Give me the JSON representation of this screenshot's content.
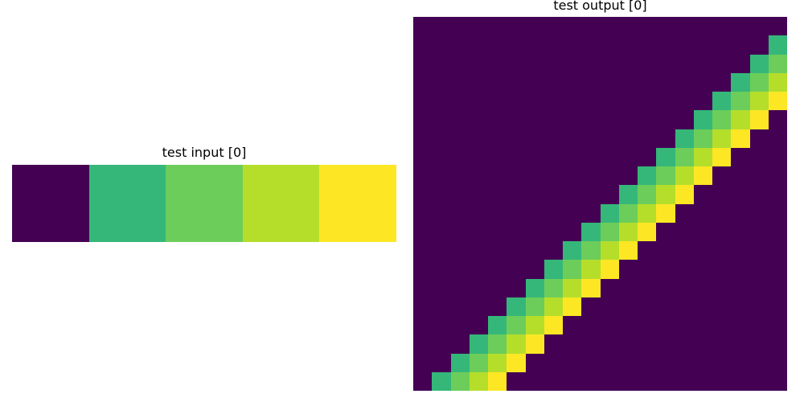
{
  "panels": {
    "input": {
      "title": "test input [0]",
      "grid": [
        [
          0,
          1,
          2,
          3,
          4
        ]
      ]
    },
    "output": {
      "title": "test output [0]",
      "grid": [
        [
          0,
          0,
          0,
          0,
          0,
          0,
          0,
          0,
          0,
          0,
          0,
          0,
          0,
          0,
          0,
          0,
          0,
          0,
          0,
          0
        ],
        [
          0,
          0,
          0,
          0,
          0,
          0,
          0,
          0,
          0,
          0,
          0,
          0,
          0,
          0,
          0,
          0,
          0,
          0,
          0,
          1
        ],
        [
          0,
          0,
          0,
          0,
          0,
          0,
          0,
          0,
          0,
          0,
          0,
          0,
          0,
          0,
          0,
          0,
          0,
          0,
          1,
          2
        ],
        [
          0,
          0,
          0,
          0,
          0,
          0,
          0,
          0,
          0,
          0,
          0,
          0,
          0,
          0,
          0,
          0,
          0,
          1,
          2,
          3
        ],
        [
          0,
          0,
          0,
          0,
          0,
          0,
          0,
          0,
          0,
          0,
          0,
          0,
          0,
          0,
          0,
          0,
          1,
          2,
          3,
          4
        ],
        [
          0,
          0,
          0,
          0,
          0,
          0,
          0,
          0,
          0,
          0,
          0,
          0,
          0,
          0,
          0,
          1,
          2,
          3,
          4,
          0
        ],
        [
          0,
          0,
          0,
          0,
          0,
          0,
          0,
          0,
          0,
          0,
          0,
          0,
          0,
          0,
          1,
          2,
          3,
          4,
          0,
          0
        ],
        [
          0,
          0,
          0,
          0,
          0,
          0,
          0,
          0,
          0,
          0,
          0,
          0,
          0,
          1,
          2,
          3,
          4,
          0,
          0,
          0
        ],
        [
          0,
          0,
          0,
          0,
          0,
          0,
          0,
          0,
          0,
          0,
          0,
          0,
          1,
          2,
          3,
          4,
          0,
          0,
          0,
          0
        ],
        [
          0,
          0,
          0,
          0,
          0,
          0,
          0,
          0,
          0,
          0,
          0,
          1,
          2,
          3,
          4,
          0,
          0,
          0,
          0,
          0
        ],
        [
          0,
          0,
          0,
          0,
          0,
          0,
          0,
          0,
          0,
          0,
          1,
          2,
          3,
          4,
          0,
          0,
          0,
          0,
          0,
          0
        ],
        [
          0,
          0,
          0,
          0,
          0,
          0,
          0,
          0,
          0,
          1,
          2,
          3,
          4,
          0,
          0,
          0,
          0,
          0,
          0,
          0
        ],
        [
          0,
          0,
          0,
          0,
          0,
          0,
          0,
          0,
          1,
          2,
          3,
          4,
          0,
          0,
          0,
          0,
          0,
          0,
          0,
          0
        ],
        [
          0,
          0,
          0,
          0,
          0,
          0,
          0,
          1,
          2,
          3,
          4,
          0,
          0,
          0,
          0,
          0,
          0,
          0,
          0,
          0
        ],
        [
          0,
          0,
          0,
          0,
          0,
          0,
          1,
          2,
          3,
          4,
          0,
          0,
          0,
          0,
          0,
          0,
          0,
          0,
          0,
          0
        ],
        [
          0,
          0,
          0,
          0,
          0,
          1,
          2,
          3,
          4,
          0,
          0,
          0,
          0,
          0,
          0,
          0,
          0,
          0,
          0,
          0
        ],
        [
          0,
          0,
          0,
          0,
          1,
          2,
          3,
          4,
          0,
          0,
          0,
          0,
          0,
          0,
          0,
          0,
          0,
          0,
          0,
          0
        ],
        [
          0,
          0,
          0,
          1,
          2,
          3,
          4,
          0,
          0,
          0,
          0,
          0,
          0,
          0,
          0,
          0,
          0,
          0,
          0,
          0
        ],
        [
          0,
          0,
          1,
          2,
          3,
          4,
          0,
          0,
          0,
          0,
          0,
          0,
          0,
          0,
          0,
          0,
          0,
          0,
          0,
          0
        ],
        [
          0,
          1,
          2,
          3,
          4,
          0,
          0,
          0,
          0,
          0,
          0,
          0,
          0,
          0,
          0,
          0,
          0,
          0,
          0,
          0
        ]
      ]
    }
  },
  "palette": [
    "#440154",
    "#35b779",
    "#6ccd5a",
    "#b5de2b",
    "#fde725"
  ]
}
